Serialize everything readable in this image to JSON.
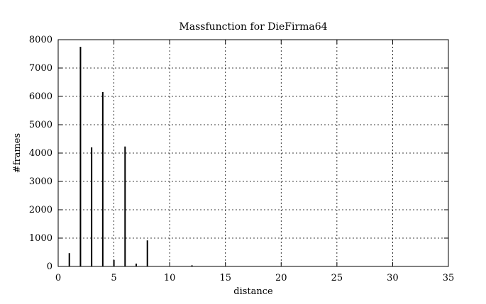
{
  "chart_data": {
    "type": "bar",
    "style": "impulses",
    "title": "Massfunction for DieFirma64",
    "xlabel": "distance",
    "ylabel": "#frames",
    "xlim": [
      0,
      35
    ],
    "ylim": [
      0,
      8000
    ],
    "xticks": [
      0,
      5,
      10,
      15,
      20,
      25,
      30,
      35
    ],
    "yticks": [
      0,
      1000,
      2000,
      3000,
      4000,
      5000,
      6000,
      7000,
      8000
    ],
    "grid": true,
    "x": [
      1,
      2,
      3,
      4,
      5,
      6,
      7,
      8,
      12
    ],
    "values": [
      470,
      7750,
      4200,
      6150,
      230,
      4230,
      100,
      920,
      40
    ]
  }
}
